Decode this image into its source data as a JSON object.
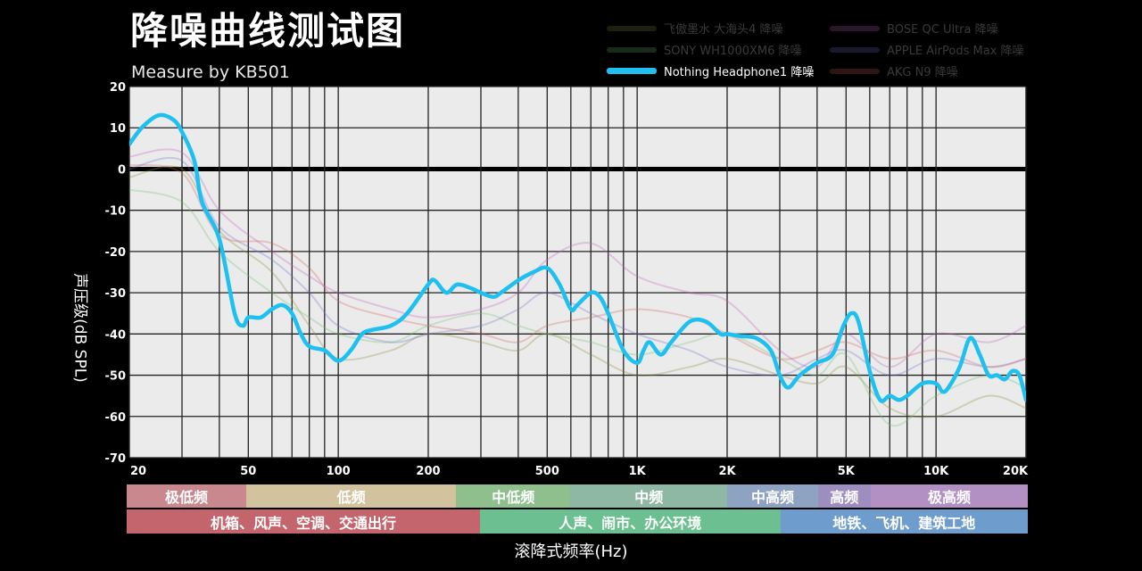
{
  "header": {
    "title": "降噪曲线测试图",
    "subtitle": "Measure by KB501"
  },
  "legend": [
    {
      "name": "飞傲墨水 大海头4 降噪",
      "color": "#8a8a40",
      "active": false
    },
    {
      "name": "BOSE QC Ultra 降噪",
      "color": "#c060c0",
      "active": false
    },
    {
      "name": "SONY WH1000XM6 降噪",
      "color": "#70c070",
      "active": false
    },
    {
      "name": "APPLE AirPods Max 降噪",
      "color": "#7070d0",
      "active": false
    },
    {
      "name": "Nothing Headphone1 降噪",
      "color": "#1ec0f0",
      "active": true
    },
    {
      "name": "AKG N9 降噪",
      "color": "#d06060",
      "active": false
    }
  ],
  "axes": {
    "ylabel": "声压级(dB SPL)",
    "xlabel": "滚降式频率(Hz)"
  },
  "bands_top": [
    {
      "label": "极低频",
      "from": 20,
      "to": 50,
      "color": "#c8888e"
    },
    {
      "label": "低频",
      "from": 50,
      "to": 250,
      "color": "#d2c29e"
    },
    {
      "label": "中低频",
      "from": 250,
      "to": 600,
      "color": "#8ebf8c"
    },
    {
      "label": "中频",
      "from": 600,
      "to": 2000,
      "color": "#8fb8a4"
    },
    {
      "label": "中高频",
      "from": 2000,
      "to": 4000,
      "color": "#8ea2c2"
    },
    {
      "label": "高频",
      "from": 4000,
      "to": 6000,
      "color": "#9e8ec0"
    },
    {
      "label": "极高频",
      "from": 6000,
      "to": 20000,
      "color": "#b290c4"
    }
  ],
  "bands_bottom": [
    {
      "label": "机箱、风声、空调、交通出行",
      "from": 20,
      "to": 300,
      "color": "#c4646c"
    },
    {
      "label": "人声、闹市、办公环境",
      "from": 300,
      "to": 3000,
      "color": "#6cbf90"
    },
    {
      "label": "地铁、飞机、建筑工地",
      "from": 3000,
      "to": 20000,
      "color": "#6e9ccc"
    }
  ],
  "chart_data": {
    "type": "line",
    "xscale": "log",
    "xlim": [
      20,
      20000
    ],
    "ylim": [
      -70,
      20
    ],
    "yticks": [
      20,
      10,
      0,
      -10,
      -20,
      -30,
      -40,
      -50,
      -60,
      -70
    ],
    "xticks": [
      {
        "value": 20,
        "label": "20"
      },
      {
        "value": 50,
        "label": "50"
      },
      {
        "value": 100,
        "label": "100"
      },
      {
        "value": 200,
        "label": "200"
      },
      {
        "value": 500,
        "label": "500"
      },
      {
        "value": 1000,
        "label": "1K"
      },
      {
        "value": 2000,
        "label": "2K"
      },
      {
        "value": 5000,
        "label": "5K"
      },
      {
        "value": 10000,
        "label": "10K"
      },
      {
        "value": 20000,
        "label": "20K"
      }
    ],
    "grid": true,
    "series": [
      {
        "name": "Nothing Headphone1 降噪",
        "color": "#1ec0f0",
        "active": true,
        "x": [
          20,
          22,
          25,
          28,
          30,
          33,
          35,
          40,
          45,
          48,
          50,
          55,
          60,
          65,
          70,
          75,
          80,
          90,
          100,
          110,
          120,
          130,
          150,
          170,
          200,
          210,
          230,
          250,
          280,
          300,
          330,
          350,
          400,
          450,
          500,
          550,
          600,
          630,
          700,
          750,
          800,
          900,
          1000,
          1050,
          1100,
          1200,
          1300,
          1500,
          1700,
          1900,
          2000,
          2200,
          2500,
          2800,
          3000,
          3200,
          3500,
          4000,
          4500,
          4900,
          5200,
          5500,
          6000,
          6500,
          7000,
          7500,
          8000,
          9000,
          10000,
          10500,
          11000,
          12000,
          13000,
          14000,
          15000,
          16000,
          17000,
          18000,
          19000,
          20000
        ],
        "y": [
          6,
          10,
          13,
          12,
          9,
          2,
          -8,
          -17,
          -35,
          -38,
          -36,
          -36,
          -34,
          -33,
          -35,
          -40,
          -43,
          -44,
          -46.5,
          -44,
          -40,
          -39,
          -38,
          -35,
          -28,
          -27,
          -30,
          -28,
          -29,
          -30,
          -31,
          -30,
          -27,
          -25,
          -24,
          -28,
          -34,
          -33,
          -30,
          -31,
          -35,
          -44,
          -47,
          -44,
          -42,
          -45,
          -42,
          -37,
          -37,
          -40,
          -40,
          -40.5,
          -41,
          -44,
          -50,
          -53,
          -50,
          -47,
          -45,
          -38,
          -35,
          -37,
          -49,
          -56,
          -55,
          -56,
          -55,
          -52,
          -52,
          -54,
          -53,
          -48,
          -41,
          -45,
          -50,
          -50,
          -51,
          -49,
          -50,
          -56
        ]
      },
      {
        "name": "飞傲墨水 大海头4 降噪",
        "color": "#8a8a40",
        "active": false,
        "x": [
          20,
          30,
          40,
          60,
          80,
          100,
          150,
          200,
          300,
          400,
          500,
          700,
          1000,
          1500,
          2000,
          3000,
          4000,
          5000,
          7000,
          10000,
          15000,
          20000
        ],
        "y": [
          -2,
          0,
          -15,
          -25,
          -38,
          -46,
          -44,
          -40,
          -42,
          -44,
          -40,
          -45,
          -50,
          -48,
          -46,
          -50,
          -52,
          -48,
          -58,
          -60,
          -55,
          -58
        ]
      },
      {
        "name": "SONY WH1000XM6 降噪",
        "color": "#70c070",
        "active": false,
        "x": [
          20,
          30,
          40,
          60,
          80,
          100,
          150,
          200,
          300,
          400,
          500,
          700,
          1000,
          1500,
          2000,
          3000,
          4000,
          5000,
          7000,
          10000,
          15000,
          20000
        ],
        "y": [
          -5,
          -8,
          -20,
          -30,
          -36,
          -40,
          -42,
          -38,
          -35,
          -38,
          -40,
          -42,
          -45,
          -42,
          -40,
          -46,
          -50,
          -45,
          -62,
          -55,
          -50,
          -53
        ]
      },
      {
        "name": "BOSE QC Ultra 降噪",
        "color": "#c060c0",
        "active": false,
        "x": [
          20,
          30,
          40,
          60,
          80,
          100,
          150,
          200,
          300,
          400,
          500,
          700,
          1000,
          1500,
          2000,
          3000,
          4000,
          5000,
          7000,
          10000,
          15000,
          20000
        ],
        "y": [
          3,
          4,
          -10,
          -20,
          -26,
          -30,
          -34,
          -36,
          -34,
          -30,
          -22,
          -18,
          -26,
          -30,
          -32,
          -44,
          -48,
          -40,
          -48,
          -40,
          -42,
          -38
        ]
      },
      {
        "name": "APPLE AirPods Max 降噪",
        "color": "#7070d0",
        "active": false,
        "x": [
          20,
          30,
          40,
          60,
          80,
          100,
          150,
          200,
          300,
          400,
          500,
          700,
          1000,
          1500,
          2000,
          3000,
          4000,
          5000,
          7000,
          10000,
          15000,
          20000
        ],
        "y": [
          0,
          2,
          -14,
          -22,
          -30,
          -38,
          -42,
          -40,
          -38,
          -34,
          -30,
          -35,
          -40,
          -44,
          -48,
          -50,
          -46,
          -44,
          -50,
          -46,
          -48,
          -46
        ]
      },
      {
        "name": "AKG N9 降噪",
        "color": "#d06060",
        "active": false,
        "x": [
          20,
          30,
          40,
          60,
          80,
          100,
          150,
          200,
          300,
          400,
          500,
          700,
          1000,
          1500,
          2000,
          3000,
          4000,
          5000,
          7000,
          10000,
          15000,
          20000
        ],
        "y": [
          1,
          -1,
          -16,
          -18,
          -24,
          -32,
          -36,
          -38,
          -40,
          -42,
          -38,
          -36,
          -34,
          -36,
          -40,
          -46,
          -44,
          -42,
          -46,
          -44,
          -48,
          -46
        ]
      }
    ]
  }
}
